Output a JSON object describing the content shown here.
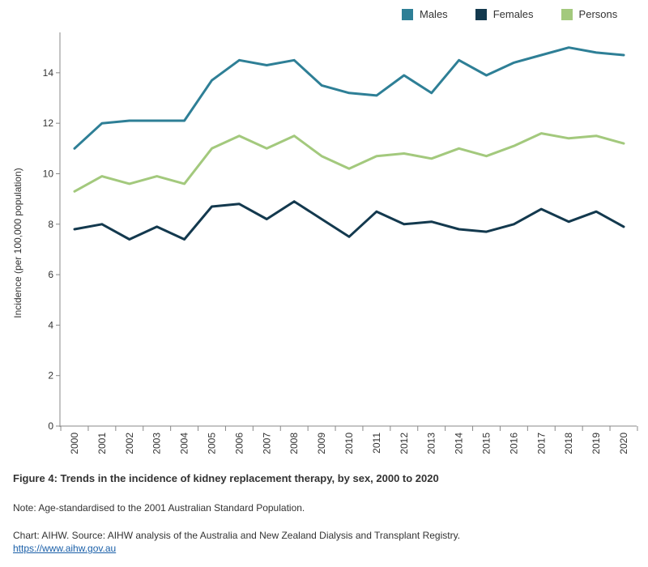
{
  "chart_data": {
    "type": "line",
    "title": "Figure 4: Trends in the incidence of kidney replacement therapy, by sex, 2000 to 2020",
    "xlabel": "",
    "ylabel": "Incidence (per 100,000 population)",
    "ylim": [
      0,
      15.6
    ],
    "yticks": [
      0,
      2,
      4,
      6,
      8,
      10,
      12,
      14
    ],
    "grid": false,
    "legend_position": "top-right",
    "x": [
      "2000",
      "2001",
      "2002",
      "2003",
      "2004",
      "2005",
      "2006",
      "2007",
      "2008",
      "2009",
      "2010",
      "2011",
      "2012",
      "2013",
      "2014",
      "2015",
      "2016",
      "2017",
      "2018",
      "2019",
      "2020"
    ],
    "series": [
      {
        "name": "Males",
        "color": "#2e7f96",
        "values": [
          11.0,
          12.0,
          12.1,
          12.1,
          12.1,
          13.7,
          14.5,
          14.3,
          14.5,
          13.5,
          13.2,
          13.1,
          13.9,
          13.2,
          14.5,
          13.9,
          14.4,
          14.7,
          15.0,
          14.8,
          14.7
        ]
      },
      {
        "name": "Females",
        "color": "#13394e",
        "values": [
          7.8,
          8.0,
          7.4,
          7.9,
          7.4,
          8.7,
          8.8,
          8.2,
          8.9,
          8.2,
          7.5,
          8.5,
          8.0,
          8.1,
          7.8,
          7.7,
          8.0,
          8.6,
          8.1,
          8.5,
          7.9
        ]
      },
      {
        "name": "Persons",
        "color": "#a3c97d",
        "values": [
          9.3,
          9.9,
          9.6,
          9.9,
          9.6,
          11.0,
          11.5,
          11.0,
          11.5,
          10.7,
          10.2,
          10.7,
          10.8,
          10.6,
          11.0,
          10.7,
          11.1,
          11.6,
          11.4,
          11.5,
          11.2
        ]
      }
    ]
  },
  "footer": {
    "title": "Figure 4: Trends in the incidence of kidney replacement therapy, by sex, 2000 to 2020",
    "note": "Note: Age-standardised to the 2001 Australian Standard Population.",
    "source": "Chart: AIHW. Source: AIHW analysis of the Australia and New Zealand Dialysis and Transplant Registry.",
    "link": "https://www.aihw.gov.au"
  }
}
